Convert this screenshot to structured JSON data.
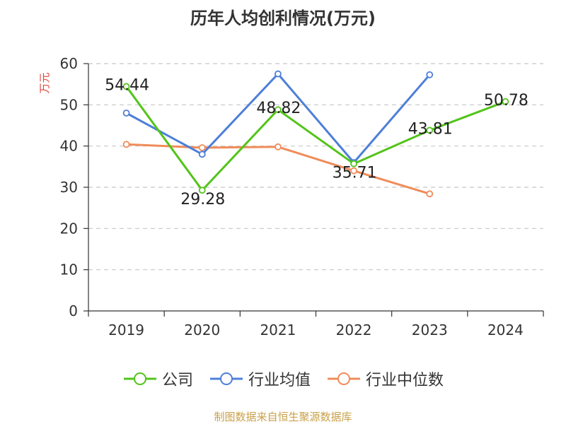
{
  "chart_data": {
    "type": "line",
    "title": "历年人均创利情况(万元)",
    "ylabel": "万元",
    "xlabel": "",
    "categories": [
      "2019",
      "2020",
      "2021",
      "2022",
      "2023",
      "2024"
    ],
    "ylim": [
      0,
      60
    ],
    "yticks": [
      0,
      10,
      20,
      30,
      40,
      50,
      60
    ],
    "grid": true,
    "legend_position": "bottom",
    "series": [
      {
        "name": "公司",
        "color": "#52c41a",
        "values": [
          54.44,
          29.28,
          48.82,
          35.71,
          43.81,
          50.78
        ],
        "show_labels": true
      },
      {
        "name": "行业均值",
        "color": "#4e7fd9",
        "values": [
          48.0,
          38.0,
          57.5,
          36.0,
          57.3,
          null
        ],
        "show_labels": false
      },
      {
        "name": "行业中位数",
        "color": "#f08c5a",
        "values": [
          40.4,
          39.6,
          39.8,
          34.0,
          28.4,
          null
        ],
        "show_labels": false
      }
    ]
  },
  "footer": {
    "source": "制图数据来自恒生聚源数据库"
  }
}
